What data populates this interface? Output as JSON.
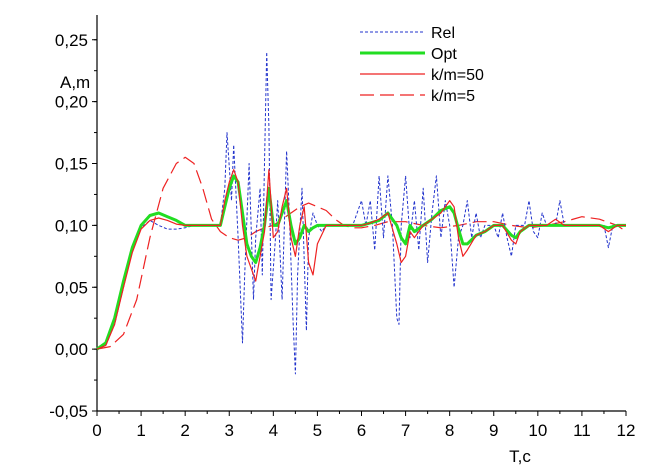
{
  "chart_data": {
    "type": "line",
    "xlabel": "T,c",
    "ylabel": "A,m",
    "xlim": [
      0,
      12
    ],
    "ylim": [
      -0.05,
      0.27
    ],
    "x_ticks": [
      0,
      1,
      2,
      3,
      4,
      5,
      6,
      7,
      8,
      9,
      10,
      11,
      12
    ],
    "x_tick_labels": [
      "0",
      "1",
      "2",
      "3",
      "4",
      "5",
      "6",
      "7",
      "8",
      "9",
      "10",
      "11",
      "12"
    ],
    "y_ticks": [
      -0.05,
      0.0,
      0.05,
      0.1,
      0.15,
      0.2,
      0.25
    ],
    "y_tick_labels": [
      "-0,05",
      "0,00",
      "0,05",
      "0,10",
      "0,15",
      "0,20",
      "0,25"
    ],
    "grid": false,
    "legend_position": "top-right",
    "series": [
      {
        "name": "Rel",
        "color": "#2233cc",
        "dash": "dotted",
        "x": [
          0,
          0.2,
          0.4,
          0.6,
          0.8,
          1.0,
          1.2,
          1.4,
          1.6,
          1.8,
          2.0,
          2.2,
          2.5,
          2.8,
          2.9,
          2.95,
          3.05,
          3.1,
          3.2,
          3.3,
          3.35,
          3.45,
          3.55,
          3.6,
          3.7,
          3.75,
          3.85,
          3.9,
          3.95,
          4.05,
          4.1,
          4.2,
          4.3,
          4.35,
          4.45,
          4.5,
          4.55,
          4.65,
          4.75,
          4.8,
          4.9,
          5.0,
          5.1,
          5.2,
          5.4,
          5.6,
          5.8,
          6.0,
          6.1,
          6.2,
          6.3,
          6.4,
          6.5,
          6.6,
          6.7,
          6.8,
          6.85,
          6.9,
          7.0,
          7.1,
          7.2,
          7.3,
          7.4,
          7.5,
          7.6,
          7.7,
          7.8,
          7.9,
          8.0,
          8.1,
          8.2,
          8.3,
          8.4,
          8.5,
          8.6,
          8.7,
          8.8,
          8.9,
          9.0,
          9.1,
          9.2,
          9.3,
          9.4,
          9.5,
          9.6,
          9.7,
          9.8,
          9.9,
          10.0,
          10.1,
          10.2,
          10.3,
          10.4,
          10.5,
          10.6,
          10.7,
          10.8,
          10.9,
          11.0,
          11.2,
          11.4,
          11.5,
          11.6,
          11.7,
          11.8,
          11.9,
          12.0
        ],
        "values": [
          0.0,
          0.003,
          0.02,
          0.05,
          0.08,
          0.098,
          0.104,
          0.1,
          0.097,
          0.097,
          0.098,
          0.1,
          0.1,
          0.1,
          0.13,
          0.175,
          0.12,
          0.165,
          0.09,
          0.005,
          0.06,
          0.15,
          0.04,
          0.09,
          0.13,
          0.06,
          0.24,
          0.18,
          0.04,
          0.09,
          0.12,
          0.04,
          0.16,
          0.12,
          0.02,
          -0.02,
          0.06,
          0.13,
          0.015,
          0.09,
          0.11,
          0.1,
          0.095,
          0.1,
          0.1,
          0.1,
          0.1,
          0.12,
          0.1,
          0.12,
          0.08,
          0.14,
          0.09,
          0.14,
          0.1,
          0.025,
          0.02,
          0.1,
          0.14,
          0.09,
          0.12,
          0.08,
          0.13,
          0.07,
          0.11,
          0.14,
          0.09,
          0.12,
          0.1,
          0.05,
          0.09,
          0.1,
          0.12,
          0.09,
          0.11,
          0.09,
          0.1,
          0.1,
          0.1,
          0.09,
          0.11,
          0.09,
          0.075,
          0.1,
          0.1,
          0.1,
          0.12,
          0.095,
          0.09,
          0.11,
          0.1,
          0.1,
          0.1,
          0.12,
          0.1,
          0.1,
          0.1,
          0.1,
          0.1,
          0.1,
          0.1,
          0.1,
          0.082,
          0.1,
          0.1,
          0.1,
          0.1
        ]
      },
      {
        "name": "Opt",
        "color": "#22dd22",
        "dash": "solid",
        "x": [
          0,
          0.2,
          0.4,
          0.6,
          0.8,
          1.0,
          1.2,
          1.4,
          1.6,
          1.8,
          2.0,
          2.2,
          2.5,
          2.8,
          2.9,
          3.0,
          3.1,
          3.2,
          3.3,
          3.4,
          3.5,
          3.6,
          3.7,
          3.8,
          3.9,
          4.0,
          4.1,
          4.2,
          4.3,
          4.4,
          4.5,
          4.6,
          4.7,
          4.8,
          4.9,
          5.0,
          5.2,
          5.4,
          5.6,
          5.8,
          6.0,
          6.2,
          6.4,
          6.6,
          6.8,
          6.9,
          7.0,
          7.1,
          7.2,
          7.4,
          7.6,
          7.8,
          8.0,
          8.1,
          8.2,
          8.3,
          8.4,
          8.6,
          8.8,
          9.0,
          9.2,
          9.4,
          9.5,
          9.6,
          9.8,
          10.0,
          10.2,
          10.4,
          10.6,
          10.8,
          11.0,
          11.2,
          11.4,
          11.6,
          11.8,
          12.0
        ],
        "values": [
          0.0,
          0.005,
          0.025,
          0.055,
          0.082,
          0.1,
          0.108,
          0.11,
          0.107,
          0.104,
          0.1,
          0.1,
          0.1,
          0.1,
          0.115,
          0.13,
          0.14,
          0.135,
          0.11,
          0.085,
          0.075,
          0.07,
          0.082,
          0.1,
          0.13,
          0.1,
          0.1,
          0.11,
          0.12,
          0.1,
          0.085,
          0.09,
          0.1,
          0.095,
          0.098,
          0.1,
          0.1,
          0.1,
          0.1,
          0.1,
          0.1,
          0.102,
          0.104,
          0.11,
          0.1,
          0.09,
          0.085,
          0.1,
          0.095,
          0.1,
          0.105,
          0.112,
          0.115,
          0.11,
          0.097,
          0.085,
          0.085,
          0.092,
          0.095,
          0.1,
          0.1,
          0.092,
          0.09,
          0.095,
          0.1,
          0.1,
          0.1,
          0.1,
          0.1,
          0.1,
          0.1,
          0.1,
          0.1,
          0.098,
          0.1,
          0.1
        ]
      },
      {
        "name": "k/m=50",
        "color": "#ee2222",
        "dash": "solid",
        "x": [
          0,
          0.2,
          0.4,
          0.6,
          0.8,
          1.0,
          1.2,
          1.4,
          1.6,
          1.8,
          2.0,
          2.2,
          2.5,
          2.8,
          2.9,
          3.0,
          3.1,
          3.2,
          3.3,
          3.4,
          3.5,
          3.6,
          3.7,
          3.8,
          3.9,
          4.0,
          4.1,
          4.2,
          4.3,
          4.4,
          4.5,
          4.6,
          4.7,
          4.8,
          4.9,
          5.0,
          5.2,
          5.4,
          5.6,
          5.8,
          6.0,
          6.2,
          6.4,
          6.6,
          6.8,
          6.9,
          7.0,
          7.1,
          7.2,
          7.4,
          7.6,
          7.8,
          8.0,
          8.1,
          8.2,
          8.3,
          8.4,
          8.6,
          8.8,
          9.0,
          9.2,
          9.4,
          9.5,
          9.6,
          9.8,
          10.0,
          10.2,
          10.4,
          10.6,
          10.8,
          11.0,
          11.2,
          11.4,
          11.6,
          11.8,
          12.0
        ],
        "values": [
          0.0,
          0.003,
          0.02,
          0.05,
          0.078,
          0.097,
          0.104,
          0.106,
          0.104,
          0.101,
          0.1,
          0.1,
          0.1,
          0.1,
          0.12,
          0.135,
          0.145,
          0.135,
          0.1,
          0.075,
          0.065,
          0.055,
          0.075,
          0.095,
          0.145,
          0.09,
          0.095,
          0.115,
          0.13,
          0.09,
          0.075,
          0.1,
          0.115,
          0.07,
          0.06,
          0.085,
          0.1,
          0.1,
          0.1,
          0.1,
          0.1,
          0.102,
          0.105,
          0.11,
          0.085,
          0.07,
          0.075,
          0.095,
          0.09,
          0.1,
          0.105,
          0.11,
          0.12,
          0.115,
          0.09,
          0.075,
          0.08,
          0.092,
          0.095,
          0.1,
          0.1,
          0.088,
          0.085,
          0.095,
          0.1,
          0.1,
          0.1,
          0.105,
          0.1,
          0.1,
          0.1,
          0.1,
          0.1,
          0.095,
          0.1,
          0.1
        ]
      },
      {
        "name": "k/m=5",
        "color": "#ee2222",
        "dash": "dashed",
        "x": [
          0,
          0.3,
          0.6,
          0.9,
          1.2,
          1.5,
          1.8,
          2.0,
          2.2,
          2.4,
          2.6,
          2.8,
          3.0,
          3.2,
          3.4,
          3.6,
          3.8,
          4.0,
          4.2,
          4.4,
          4.6,
          4.8,
          5.0,
          5.2,
          5.4,
          5.6,
          5.8,
          6.0,
          6.3,
          6.6,
          7.0,
          7.4,
          7.8,
          8.2,
          8.6,
          9.0,
          9.4,
          9.8,
          10.2,
          10.6,
          11.0,
          11.4,
          11.8,
          12.0
        ],
        "values": [
          0.0,
          0.002,
          0.012,
          0.04,
          0.09,
          0.13,
          0.15,
          0.155,
          0.15,
          0.13,
          0.105,
          0.095,
          0.09,
          0.088,
          0.09,
          0.095,
          0.098,
          0.1,
          0.105,
          0.11,
          0.115,
          0.118,
          0.115,
          0.112,
          0.105,
          0.1,
          0.098,
          0.098,
          0.1,
          0.103,
          0.103,
          0.1,
          0.098,
          0.1,
          0.103,
          0.103,
          0.1,
          0.098,
          0.1,
          0.103,
          0.107,
          0.105,
          0.1,
          0.095
        ]
      }
    ]
  }
}
